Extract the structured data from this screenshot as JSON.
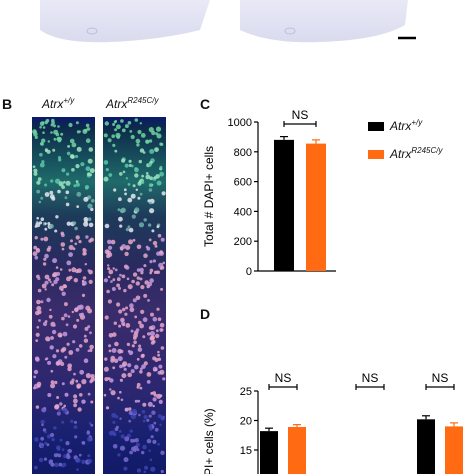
{
  "panels": {
    "B": {
      "letter": "B",
      "columns": [
        {
          "gene": "Atrx",
          "genotype": "+/y"
        },
        {
          "gene": "Atrx",
          "genotype": "R245C/y"
        }
      ]
    },
    "C": {
      "letter": "C"
    },
    "D": {
      "letter": "D"
    }
  },
  "legend": {
    "items": [
      {
        "gene": "Atrx",
        "genotype": "+/y",
        "color": "#000000"
      },
      {
        "gene": "Atrx",
        "genotype": "R245C/y",
        "color": "#ff6a13"
      }
    ]
  },
  "colors": {
    "wt": "#000000",
    "mut": "#ff6a13"
  },
  "chart_data": [
    {
      "type": "bar",
      "panel": "C",
      "title": "",
      "ylabel": "Total # DAPI+ cells",
      "xlabel": "",
      "ylim": [
        0,
        1000
      ],
      "yticks": [
        0,
        200,
        400,
        600,
        800,
        1000
      ],
      "series": [
        {
          "genotype": "+/y",
          "values": [
            880
          ],
          "error": [
            22
          ]
        },
        {
          "genotype": "R245C/y",
          "values": [
            855
          ],
          "error": [
            25
          ]
        }
      ],
      "annotations": [
        "NS"
      ]
    },
    {
      "type": "bar",
      "panel": "D",
      "title": "",
      "ylabel": "DAPI+ cells (%)",
      "xlabel": "",
      "ylim": [
        0,
        25
      ],
      "yticks": [
        15,
        20,
        25
      ],
      "groups": 3,
      "series": [
        {
          "genotype": "+/y",
          "values": [
            18.2,
            null,
            20.2
          ],
          "error": [
            0.5,
            null,
            0.6
          ]
        },
        {
          "genotype": "R245C/y",
          "values": [
            18.9,
            null,
            19.0
          ],
          "error": [
            0.4,
            null,
            0.6
          ]
        }
      ],
      "annotations": [
        "NS",
        "NS",
        "NS"
      ]
    }
  ]
}
